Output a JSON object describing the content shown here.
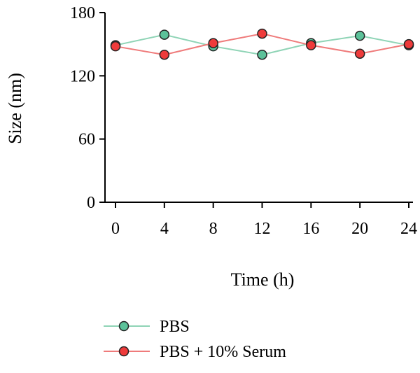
{
  "chart_data": {
    "type": "line",
    "xlabel": "Time (h)",
    "ylabel": "Size (nm)",
    "x": [
      0,
      4,
      8,
      12,
      16,
      20,
      24
    ],
    "xlim": [
      0,
      24
    ],
    "ylim": [
      0,
      180
    ],
    "xticks": [
      "0",
      "4",
      "8",
      "12",
      "16",
      "20",
      "24"
    ],
    "yticks": [
      "0",
      "60",
      "120",
      "180"
    ],
    "grid": false,
    "legend_position": "bottom-left",
    "series": [
      {
        "name": "PBS",
        "color": "#5cc29a",
        "marker_color": "#5cc29a",
        "line_color": "#8fd4b6",
        "values": [
          149,
          159,
          148,
          140,
          151,
          158,
          149
        ]
      },
      {
        "name": "PBS + 10% Serum",
        "color": "#ee3b3b",
        "marker_color": "#ee3b3b",
        "line_color": "#ef7b7b",
        "values": [
          148,
          140,
          151,
          160,
          149,
          141,
          150
        ]
      }
    ]
  }
}
